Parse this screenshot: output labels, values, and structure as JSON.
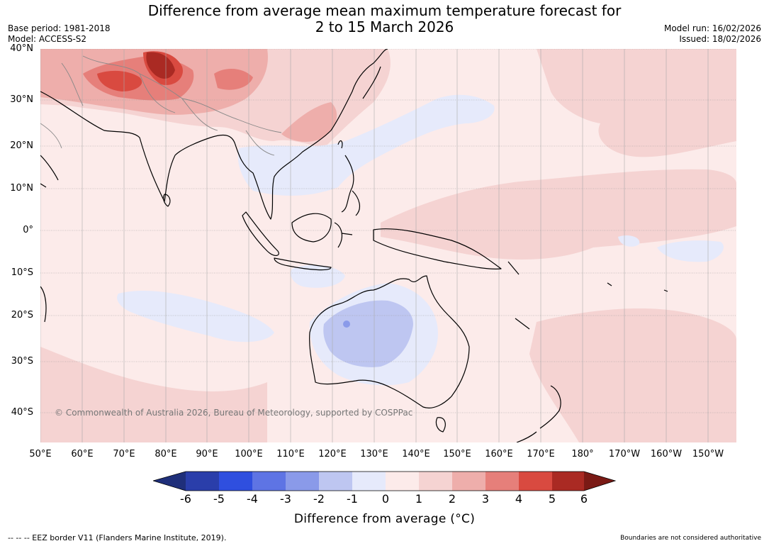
{
  "header": {
    "title_line1": "Difference from average mean maximum temperature forecast for",
    "title_line2": "2 to 15 March 2026",
    "base_period": "Base period: 1981-2018",
    "model": "Model: ACCESS-S2",
    "model_run": "Model run: 16/02/2026",
    "issued": "Issued: 18/02/2026"
  },
  "map": {
    "lat_labels": [
      "40°N",
      "30°N",
      "20°N",
      "10°N",
      "0°",
      "10°S",
      "20°S",
      "30°S",
      "40°S"
    ],
    "lon_labels": [
      "50°E",
      "60°E",
      "70°E",
      "80°E",
      "90°E",
      "100°E",
      "110°E",
      "120°E",
      "130°E",
      "140°E",
      "150°E",
      "160°E",
      "170°E",
      "180°",
      "170°W",
      "160°W",
      "150°W"
    ],
    "credit": "© Commonwealth of Australia 2026, Bureau of Meteorology, supported by COSPPac"
  },
  "colorbar": {
    "ticks": [
      "-6",
      "-5",
      "-4",
      "-3",
      "-2",
      "-1",
      "0",
      "1",
      "2",
      "3",
      "4",
      "5",
      "6"
    ],
    "colors": [
      "#1f2f7a",
      "#2a3eaa",
      "#2f4fdf",
      "#5e74e4",
      "#8a9ae9",
      "#bec6f1",
      "#e6eafb",
      "#fcebea",
      "#f5d3d2",
      "#eeaeab",
      "#e67f7a",
      "#d94a40",
      "#aa2a23",
      "#7a1a15"
    ],
    "label": "Difference from average (°C)"
  },
  "footer": {
    "eez": "--  --  -- EEZ border V11 (Flanders Marine Institute, 2019).",
    "boundaries": "Boundaries are not considered authoritative"
  }
}
